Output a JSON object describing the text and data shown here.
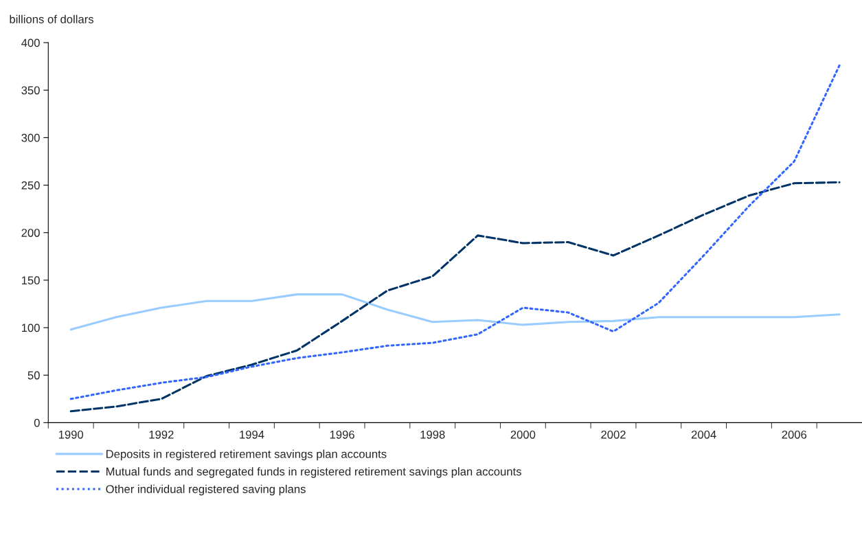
{
  "chart_data": {
    "type": "line",
    "ylabel": "billions of dollars",
    "categories": [
      "1990",
      null,
      "1992",
      null,
      "1994",
      null,
      "1996",
      null,
      "1998",
      null,
      "2000",
      null,
      "2002",
      null,
      "2004",
      null,
      "2006",
      null
    ],
    "series": [
      {
        "name": "Deposits in registered retirement savings plan accounts",
        "color": "#99ccff",
        "line_style": "solid",
        "values": [
          98,
          111,
          121,
          128,
          128,
          135,
          135,
          119,
          106,
          108,
          103,
          106,
          107,
          111,
          111,
          111,
          111,
          114
        ]
      },
      {
        "name": "Mutual funds and segregated funds in registered retirement savings plan accounts",
        "color": "#003366",
        "line_style": "dashed",
        "values": [
          12,
          17,
          25,
          49,
          61,
          76,
          107,
          139,
          154,
          197,
          189,
          190,
          176,
          197,
          219,
          239,
          252,
          253
        ]
      },
      {
        "name": "Other individual registered saving plans",
        "color": "#3366ff",
        "line_style": "dotted",
        "values": [
          25,
          34,
          42,
          48,
          59,
          68,
          74,
          81,
          84,
          93,
          121,
          116,
          96,
          126,
          176,
          228,
          275,
          376
        ]
      }
    ],
    "ylim": [
      0,
      400
    ],
    "yticks": [
      0,
      50,
      100,
      150,
      200,
      250,
      300,
      350,
      400
    ],
    "grid": false,
    "legend": "bottom",
    "marker": "none"
  }
}
